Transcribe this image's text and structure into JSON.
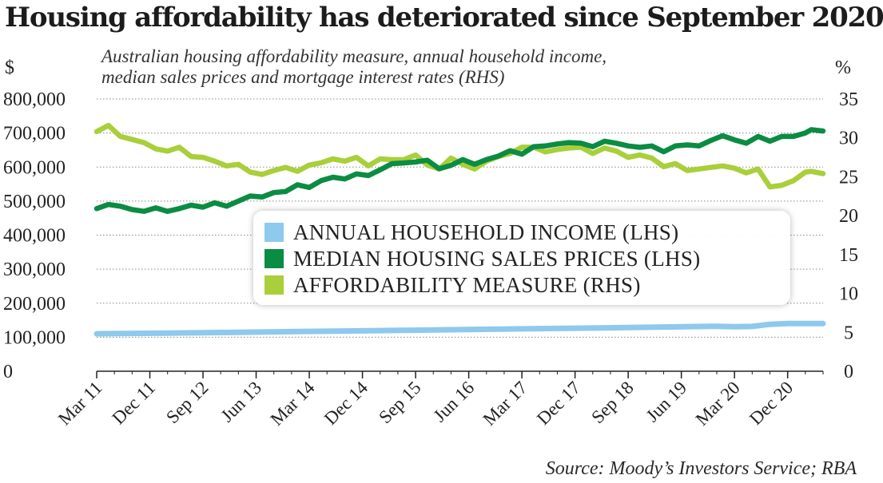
{
  "title": "Housing affordability has deteriorated since September 2020",
  "subtitle_lines": [
    "Australian housing affordability measure, annual household income,",
    "median sales prices and mortgage interest rates (RHS)"
  ],
  "source": "Source: Moody’s Investors Service; RBA",
  "colors": {
    "income": "#8ec9ee",
    "prices": "#0b8c43",
    "affordability": "#a9cf3a",
    "grid": "#888888",
    "axis": "#222222"
  },
  "chart_data": {
    "type": "line",
    "left_axis": {
      "unit": "$",
      "range": [
        0,
        800000
      ],
      "ticks": [
        0,
        100000,
        200000,
        300000,
        400000,
        500000,
        600000,
        700000,
        800000
      ],
      "tick_labels": [
        "0",
        "100,000",
        "200,000",
        "300,000",
        "400,000",
        "500,000",
        "600,000",
        "700,000",
        "800,000"
      ]
    },
    "right_axis": {
      "unit": "%",
      "range": [
        0,
        35
      ],
      "ticks": [
        0,
        5,
        10,
        15,
        20,
        25,
        30,
        35
      ],
      "tick_labels": [
        "0",
        "5",
        "10",
        "15",
        "20",
        "25",
        "30",
        "35"
      ]
    },
    "x_axis": {
      "start": 2011.167,
      "end": 2021.417,
      "labels": [
        "Mar 11",
        "Dec 11",
        "Sep 12",
        "Jun 13",
        "Mar 14",
        "Dec 14",
        "Sep 15",
        "Jun 16",
        "Mar 17",
        "Dec 17",
        "Sep 18",
        "Jun 19",
        "Mar 20",
        "Dec 20"
      ],
      "label_positions": [
        2011.167,
        2011.917,
        2012.667,
        2013.417,
        2014.167,
        2014.917,
        2015.667,
        2016.417,
        2017.167,
        2017.917,
        2018.667,
        2019.417,
        2020.167,
        2020.917
      ]
    },
    "grid": true,
    "legend_position": "center",
    "series": [
      {
        "key": "income",
        "name": "ANNUAL HOUSEHOLD INCOME (LHS)",
        "axis": "left",
        "x": [
          2011.167,
          2012.167,
          2013.167,
          2014.167,
          2015.167,
          2016.167,
          2017.167,
          2018.167,
          2019.167,
          2019.917,
          2020.167,
          2020.417,
          2020.667,
          2020.917,
          2021.167,
          2021.417
        ],
        "values": [
          110000,
          112000,
          114500,
          117000,
          119500,
          122000,
          124500,
          127000,
          130000,
          132000,
          131000,
          131500,
          138000,
          140000,
          140000,
          140000
        ]
      },
      {
        "key": "prices",
        "name": "MEDIAN HOUSING SALES PRICES (LHS)",
        "axis": "left",
        "x": [
          2011.167,
          2011.333,
          2011.5,
          2011.667,
          2011.833,
          2012.0,
          2012.167,
          2012.333,
          2012.5,
          2012.667,
          2012.833,
          2013.0,
          2013.167,
          2013.333,
          2013.5,
          2013.667,
          2013.833,
          2014.0,
          2014.167,
          2014.333,
          2014.5,
          2014.667,
          2014.833,
          2015.0,
          2015.167,
          2015.333,
          2015.5,
          2015.667,
          2015.833,
          2016.0,
          2016.167,
          2016.333,
          2016.5,
          2016.667,
          2016.833,
          2017.0,
          2017.167,
          2017.333,
          2017.5,
          2017.667,
          2017.833,
          2018.0,
          2018.167,
          2018.333,
          2018.5,
          2018.667,
          2018.833,
          2019.0,
          2019.167,
          2019.333,
          2019.5,
          2019.667,
          2019.833,
          2020.0,
          2020.167,
          2020.333,
          2020.5,
          2020.667,
          2020.833,
          2021.0,
          2021.167,
          2021.25,
          2021.417
        ],
        "values": [
          478000,
          490000,
          485000,
          475000,
          470000,
          480000,
          470000,
          478000,
          488000,
          482000,
          495000,
          485000,
          500000,
          515000,
          512000,
          525000,
          528000,
          548000,
          540000,
          560000,
          570000,
          565000,
          580000,
          575000,
          592000,
          610000,
          612000,
          615000,
          620000,
          595000,
          605000,
          622000,
          608000,
          622000,
          632000,
          648000,
          638000,
          660000,
          662000,
          668000,
          672000,
          670000,
          660000,
          676000,
          670000,
          662000,
          658000,
          662000,
          645000,
          662000,
          665000,
          662000,
          678000,
          692000,
          680000,
          670000,
          690000,
          676000,
          690000,
          690000,
          700000,
          710000,
          706000
        ]
      },
      {
        "key": "affordability",
        "name": "AFFORDABILITY MEASURE (RHS)",
        "axis": "right",
        "x": [
          2011.167,
          2011.333,
          2011.5,
          2011.667,
          2011.833,
          2012.0,
          2012.167,
          2012.333,
          2012.5,
          2012.667,
          2012.833,
          2013.0,
          2013.167,
          2013.333,
          2013.5,
          2013.667,
          2013.833,
          2014.0,
          2014.167,
          2014.333,
          2014.5,
          2014.667,
          2014.833,
          2015.0,
          2015.167,
          2015.333,
          2015.5,
          2015.667,
          2015.833,
          2016.0,
          2016.167,
          2016.333,
          2016.5,
          2016.667,
          2016.833,
          2017.0,
          2017.167,
          2017.333,
          2017.5,
          2017.667,
          2017.833,
          2018.0,
          2018.167,
          2018.333,
          2018.5,
          2018.667,
          2018.833,
          2019.0,
          2019.167,
          2019.333,
          2019.5,
          2019.667,
          2019.833,
          2020.0,
          2020.167,
          2020.333,
          2020.5,
          2020.667,
          2020.833,
          2021.0,
          2021.167,
          2021.25,
          2021.417
        ],
        "values": [
          30.8,
          31.6,
          30.2,
          29.8,
          29.4,
          28.6,
          28.3,
          28.8,
          27.6,
          27.5,
          27.0,
          26.4,
          26.6,
          25.6,
          25.3,
          25.8,
          26.2,
          25.7,
          26.5,
          26.8,
          27.3,
          27.0,
          27.5,
          26.4,
          27.3,
          27.2,
          27.2,
          27.8,
          26.5,
          26.0,
          27.4,
          26.6,
          26.0,
          27.0,
          27.6,
          28.0,
          28.8,
          28.8,
          28.2,
          28.5,
          28.7,
          28.8,
          28.0,
          28.7,
          28.3,
          27.5,
          27.8,
          27.4,
          26.3,
          26.7,
          25.8,
          26.0,
          26.2,
          26.4,
          26.1,
          25.5,
          26.0,
          23.7,
          23.9,
          24.5,
          25.6,
          25.7,
          25.4
        ]
      }
    ]
  }
}
